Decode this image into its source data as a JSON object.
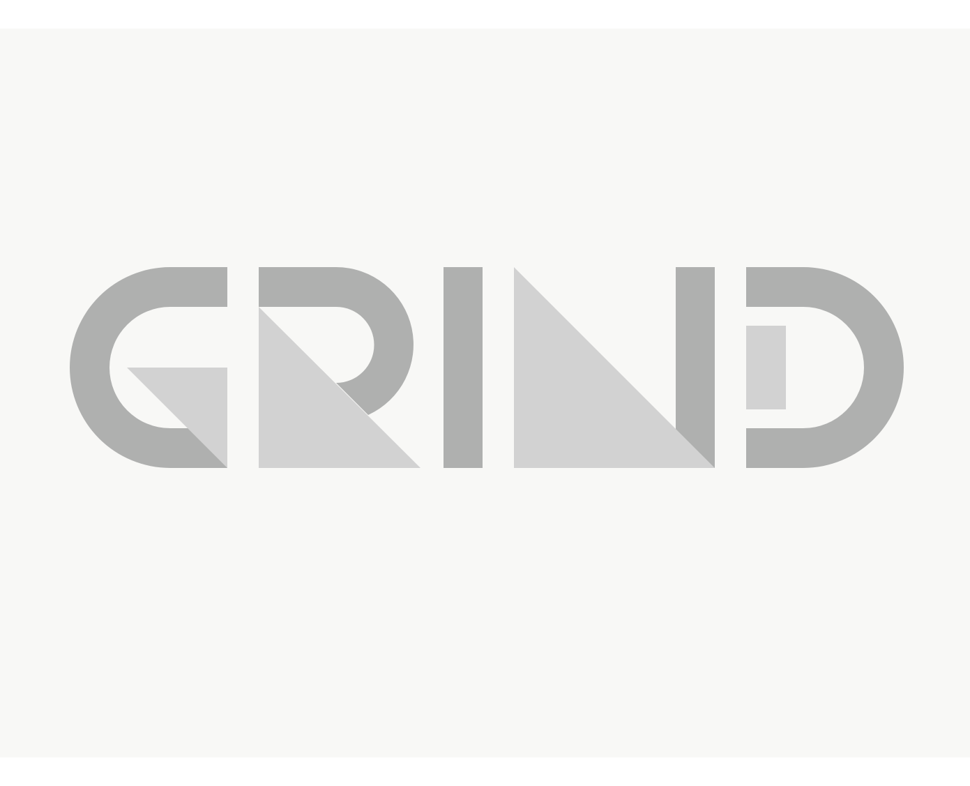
{
  "logo": {
    "wordmark": "GRIND",
    "colors": {
      "page": "#ffffff",
      "canvas": "#f8f8f6",
      "dark": "#afb0af",
      "light": "#d2d2d2"
    }
  }
}
